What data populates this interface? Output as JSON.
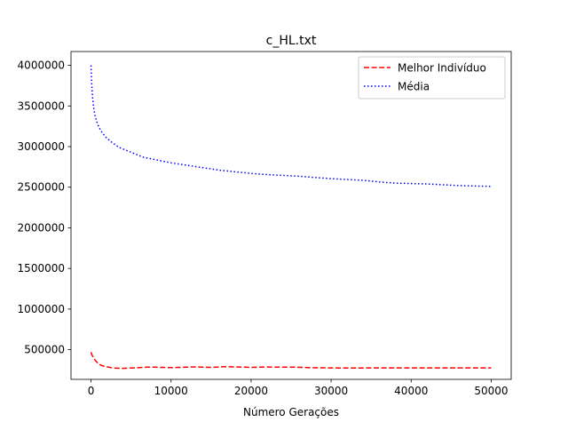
{
  "chart_data": {
    "type": "line",
    "title": "c_HL.txt",
    "xlabel": "Número Gerações",
    "ylabel": "",
    "xlim": [
      -2500,
      52500
    ],
    "ylim": [
      135000,
      4170000
    ],
    "xticks": [
      0,
      10000,
      20000,
      30000,
      40000,
      50000
    ],
    "yticks": [
      500000,
      1000000,
      1500000,
      2000000,
      2500000,
      3000000,
      3500000,
      4000000
    ],
    "grid": false,
    "legend_position": "top-right",
    "series": [
      {
        "name": "Melhor Indivíduo",
        "color": "#ff0000",
        "style": "dashed",
        "x": [
          0,
          100,
          300,
          600,
          1000,
          1500,
          2000,
          2500,
          3000,
          3500,
          4000,
          5000,
          6000,
          7000,
          8000,
          9000,
          10000,
          11000,
          12000,
          13000,
          14000,
          15000,
          16000,
          17000,
          18000,
          19000,
          20000,
          21000,
          22000,
          23000,
          24000,
          25000,
          26000,
          27000,
          28000,
          29000,
          30000,
          31000,
          32000,
          33000,
          34000,
          35000,
          36000,
          37000,
          38000,
          39000,
          40000,
          41000,
          42000,
          43000,
          44000,
          45000,
          46000,
          47000,
          48000,
          49000,
          50000
        ],
        "y": [
          470000,
          440000,
          400000,
          360000,
          320000,
          300000,
          290000,
          280000,
          275000,
          272000,
          270000,
          275000,
          280000,
          285000,
          285000,
          282000,
          280000,
          282000,
          285000,
          288000,
          285000,
          283000,
          287000,
          292000,
          288000,
          285000,
          283000,
          285000,
          287000,
          286000,
          285000,
          286000,
          284000,
          280000,
          278000,
          277000,
          276000,
          275000,
          274000,
          274000,
          275000,
          276000,
          276000,
          276000,
          276000,
          276000,
          276000,
          276000,
          276000,
          276000,
          276000,
          276000,
          276000,
          276000,
          276000,
          276000,
          276000
        ]
      },
      {
        "name": "Média",
        "color": "#0000ff",
        "style": "dotted",
        "x": [
          0,
          100,
          200,
          300,
          500,
          800,
          1200,
          1800,
          2500,
          3500,
          5000,
          6500,
          8000,
          10000,
          12000,
          14000,
          16000,
          18000,
          20000,
          22000,
          24000,
          26000,
          28000,
          30000,
          32000,
          34000,
          36000,
          38000,
          40000,
          42000,
          44000,
          46000,
          48000,
          50000
        ],
        "y": [
          4000000,
          3750000,
          3600000,
          3500000,
          3380000,
          3280000,
          3200000,
          3120000,
          3060000,
          2990000,
          2930000,
          2870000,
          2840000,
          2800000,
          2770000,
          2740000,
          2710000,
          2690000,
          2670000,
          2655000,
          2645000,
          2635000,
          2620000,
          2605000,
          2595000,
          2585000,
          2565000,
          2550000,
          2545000,
          2540000,
          2530000,
          2520000,
          2515000,
          2510000
        ]
      }
    ]
  }
}
